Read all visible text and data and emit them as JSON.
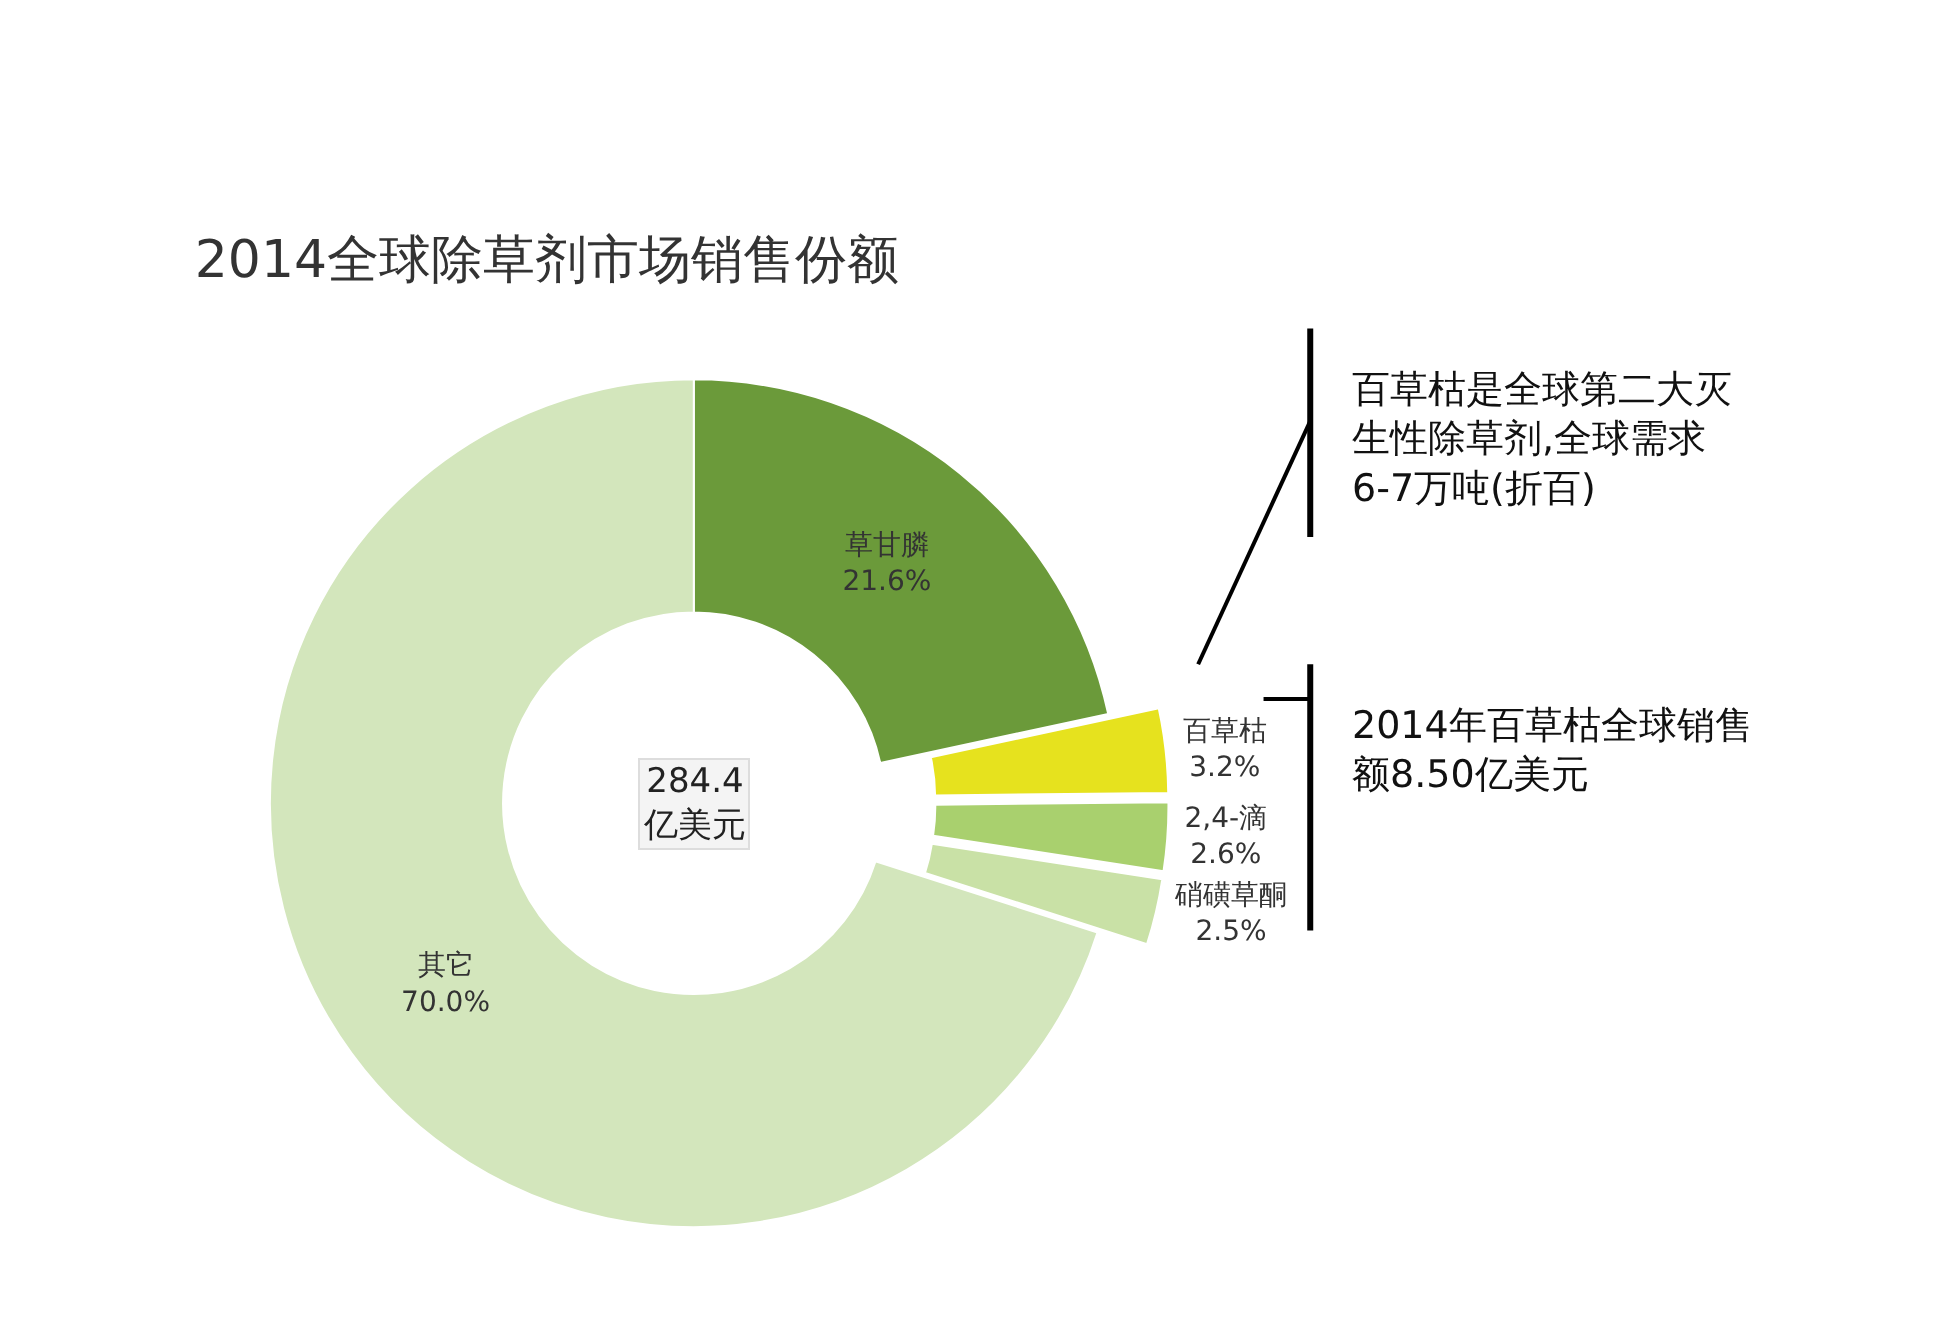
{
  "chart_data": {
    "type": "donut",
    "title": "2014全球除草剂市场销售份额",
    "categories": [
      "草甘膦",
      "百草枯",
      "2,4-滴",
      "硝磺草酮",
      "其它"
    ],
    "values": [
      21.6,
      3.2,
      2.6,
      2.5,
      70.0
    ],
    "value_labels": [
      "21.6%",
      "3.2%",
      "2.6%",
      "2.5%",
      "70.0%"
    ],
    "colors": [
      "#6b9a3a",
      "#e6e21e",
      "#a9d06e",
      "#c9e1a6",
      "#d3e6bc"
    ],
    "legend": false,
    "annotations": [
      "284.4\n亿美元",
      "百草枯是全球第二大灭生性除草剂,全球需求6-7万吨(折百)",
      "2014年百草枯全球销售额8.50亿美元"
    ]
  }
}
